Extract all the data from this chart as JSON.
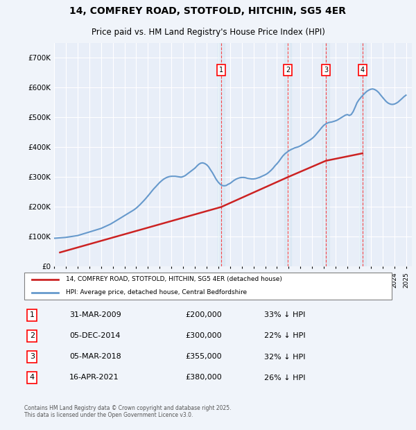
{
  "title": "14, COMFREY ROAD, STOTFOLD, HITCHIN, SG5 4ER",
  "subtitle": "Price paid vs. HM Land Registry's House Price Index (HPI)",
  "ylabel": "",
  "ylim": [
    0,
    750000
  ],
  "yticks": [
    0,
    100000,
    200000,
    300000,
    400000,
    500000,
    600000,
    700000
  ],
  "ytick_labels": [
    "£0",
    "£100K",
    "£200K",
    "£300K",
    "£400K",
    "£500K",
    "£600K",
    "£700K"
  ],
  "background_color": "#f0f4fa",
  "plot_bg_color": "#e8eef8",
  "grid_color": "#ffffff",
  "hpi_color": "#6699cc",
  "price_color": "#cc2222",
  "transaction_color": "#cc2222",
  "legend_label_price": "14, COMFREY ROAD, STOTFOLD, HITCHIN, SG5 4ER (detached house)",
  "legend_label_hpi": "HPI: Average price, detached house, Central Bedfordshire",
  "transactions": [
    {
      "num": 1,
      "date": "31-MAR-2009",
      "year": 2009.25,
      "price": 200000,
      "pct": "33% ↓ HPI"
    },
    {
      "num": 2,
      "date": "05-DEC-2014",
      "year": 2014.92,
      "price": 300000,
      "pct": "22% ↓ HPI"
    },
    {
      "num": 3,
      "date": "05-MAR-2018",
      "year": 2018.17,
      "price": 355000,
      "pct": "32% ↓ HPI"
    },
    {
      "num": 4,
      "date": "16-APR-2021",
      "year": 2021.29,
      "price": 380000,
      "pct": "26% ↓ HPI"
    }
  ],
  "footer": "Contains HM Land Registry data © Crown copyright and database right 2025.\nThis data is licensed under the Open Government Licence v3.0.",
  "hpi_data": {
    "years": [
      1995.0,
      1995.17,
      1995.33,
      1995.5,
      1995.67,
      1995.83,
      1996.0,
      1996.17,
      1996.33,
      1996.5,
      1996.67,
      1996.83,
      1997.0,
      1997.17,
      1997.33,
      1997.5,
      1997.67,
      1997.83,
      1998.0,
      1998.17,
      1998.33,
      1998.5,
      1998.67,
      1998.83,
      1999.0,
      1999.17,
      1999.33,
      1999.5,
      1999.67,
      1999.83,
      2000.0,
      2000.17,
      2000.33,
      2000.5,
      2000.67,
      2000.83,
      2001.0,
      2001.17,
      2001.33,
      2001.5,
      2001.67,
      2001.83,
      2002.0,
      2002.17,
      2002.33,
      2002.5,
      2002.67,
      2002.83,
      2003.0,
      2003.17,
      2003.33,
      2003.5,
      2003.67,
      2003.83,
      2004.0,
      2004.17,
      2004.33,
      2004.5,
      2004.67,
      2004.83,
      2005.0,
      2005.17,
      2005.33,
      2005.5,
      2005.67,
      2005.83,
      2006.0,
      2006.17,
      2006.33,
      2006.5,
      2006.67,
      2006.83,
      2007.0,
      2007.17,
      2007.33,
      2007.5,
      2007.67,
      2007.83,
      2008.0,
      2008.17,
      2008.33,
      2008.5,
      2008.67,
      2008.83,
      2009.0,
      2009.17,
      2009.33,
      2009.5,
      2009.67,
      2009.83,
      2010.0,
      2010.17,
      2010.33,
      2010.5,
      2010.67,
      2010.83,
      2011.0,
      2011.17,
      2011.33,
      2011.5,
      2011.67,
      2011.83,
      2012.0,
      2012.17,
      2012.33,
      2012.5,
      2012.67,
      2012.83,
      2013.0,
      2013.17,
      2013.33,
      2013.5,
      2013.67,
      2013.83,
      2014.0,
      2014.17,
      2014.33,
      2014.5,
      2014.67,
      2014.83,
      2015.0,
      2015.17,
      2015.33,
      2015.5,
      2015.67,
      2015.83,
      2016.0,
      2016.17,
      2016.33,
      2016.5,
      2016.67,
      2016.83,
      2017.0,
      2017.17,
      2017.33,
      2017.5,
      2017.67,
      2017.83,
      2018.0,
      2018.17,
      2018.33,
      2018.5,
      2018.67,
      2018.83,
      2019.0,
      2019.17,
      2019.33,
      2019.5,
      2019.67,
      2019.83,
      2020.0,
      2020.17,
      2020.33,
      2020.5,
      2020.67,
      2020.83,
      2021.0,
      2021.17,
      2021.33,
      2021.5,
      2021.67,
      2021.83,
      2022.0,
      2022.17,
      2022.33,
      2022.5,
      2022.67,
      2022.83,
      2023.0,
      2023.17,
      2023.33,
      2023.5,
      2023.67,
      2023.83,
      2024.0,
      2024.17,
      2024.33,
      2024.5,
      2024.67,
      2024.83,
      2025.0
    ],
    "values": [
      95000,
      95500,
      96000,
      96500,
      97000,
      97500,
      98000,
      99000,
      100000,
      101000,
      102000,
      103000,
      104000,
      106000,
      108000,
      110000,
      112000,
      114000,
      116000,
      118000,
      120000,
      122000,
      124000,
      126000,
      128000,
      131000,
      134000,
      137000,
      140000,
      143000,
      147000,
      151000,
      155000,
      159000,
      163000,
      167000,
      171000,
      175000,
      179000,
      183000,
      187000,
      191000,
      196000,
      202000,
      208000,
      215000,
      222000,
      229000,
      237000,
      245000,
      253000,
      261000,
      268000,
      275000,
      282000,
      288000,
      293000,
      297000,
      300000,
      302000,
      303000,
      303000,
      303000,
      302000,
      301000,
      300000,
      302000,
      305000,
      310000,
      315000,
      320000,
      325000,
      330000,
      337000,
      343000,
      347000,
      348000,
      346000,
      342000,
      335000,
      325000,
      315000,
      303000,
      292000,
      283000,
      276000,
      272000,
      271000,
      272000,
      276000,
      279000,
      284000,
      289000,
      293000,
      296000,
      298000,
      299000,
      299000,
      298000,
      296000,
      295000,
      294000,
      294000,
      295000,
      297000,
      299000,
      302000,
      305000,
      308000,
      312000,
      317000,
      323000,
      330000,
      338000,
      345000,
      353000,
      362000,
      371000,
      378000,
      383000,
      388000,
      392000,
      395000,
      398000,
      400000,
      402000,
      405000,
      409000,
      413000,
      417000,
      421000,
      425000,
      430000,
      436000,
      443000,
      451000,
      459000,
      467000,
      474000,
      479000,
      482000,
      484000,
      485000,
      487000,
      489000,
      492000,
      496000,
      500000,
      504000,
      508000,
      510000,
      507000,
      510000,
      520000,
      535000,
      550000,
      560000,
      568000,
      575000,
      582000,
      588000,
      592000,
      595000,
      596000,
      594000,
      590000,
      584000,
      576000,
      568000,
      560000,
      553000,
      548000,
      545000,
      544000,
      545000,
      548000,
      552000,
      558000,
      564000,
      570000,
      575000
    ]
  },
  "price_data": {
    "years": [
      1995.5,
      2009.25,
      2014.92,
      2018.17,
      2021.29
    ],
    "values": [
      47500,
      200000,
      300000,
      355000,
      380000
    ]
  },
  "xlim": [
    1995.0,
    2025.5
  ],
  "xtick_years": [
    1995,
    1996,
    1997,
    1998,
    1999,
    2000,
    2001,
    2002,
    2003,
    2004,
    2005,
    2006,
    2007,
    2008,
    2009,
    2010,
    2011,
    2012,
    2013,
    2014,
    2015,
    2016,
    2017,
    2018,
    2019,
    2020,
    2021,
    2022,
    2023,
    2024,
    2025
  ]
}
